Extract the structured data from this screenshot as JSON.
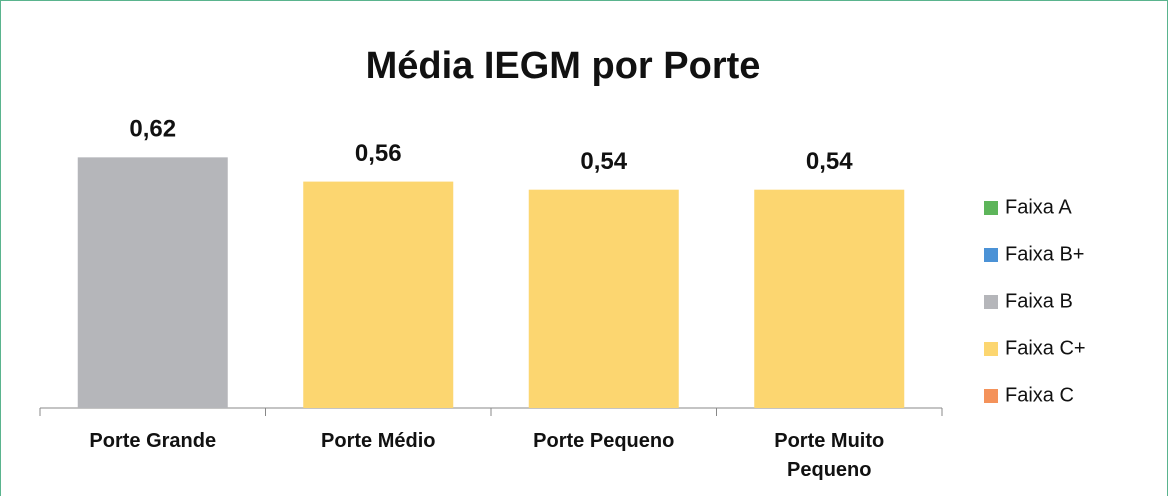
{
  "chart_data": {
    "type": "bar",
    "title": "Média IEGM por Porte",
    "categories": [
      "Porte Grande",
      "Porte Médio",
      "Porte Pequeno",
      "Porte Muito Pequeno"
    ],
    "values": [
      0.62,
      0.56,
      0.54,
      0.54
    ],
    "value_labels": [
      "0,62",
      "0,56",
      "0,54",
      "0,54"
    ],
    "colors": [
      "#b5b6ba",
      "#fcd670",
      "#fcd670",
      "#fcd670"
    ],
    "ylim": [
      0,
      0.7
    ],
    "legend": [
      {
        "name": "Faixa A",
        "color": "#5db55a"
      },
      {
        "name": "Faixa B+",
        "color": "#4b92d6"
      },
      {
        "name": "Faixa B",
        "color": "#b5b6ba"
      },
      {
        "name": "Faixa C+",
        "color": "#fcd670"
      },
      {
        "name": "Faixa C",
        "color": "#f4925a"
      }
    ],
    "legend_position": "right"
  }
}
